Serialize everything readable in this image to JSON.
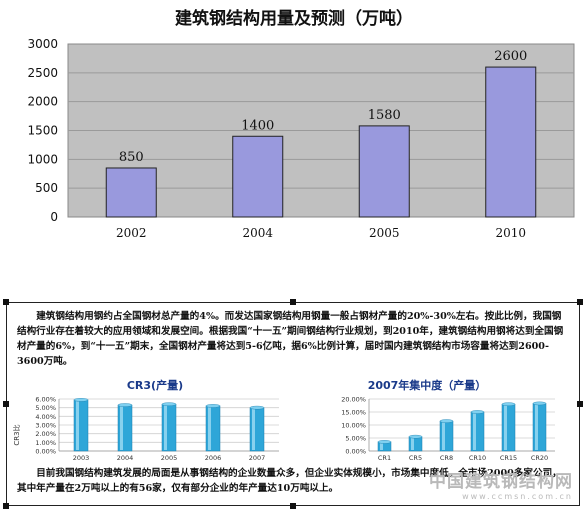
{
  "chart_data": [
    {
      "type": "bar",
      "title": "建筑钢结构用量及预测（万吨）",
      "categories": [
        "2002",
        "2004",
        "2005",
        "2010"
      ],
      "values": [
        850,
        1400,
        1580,
        2600
      ],
      "data_labels": [
        "850",
        "1400",
        "1580",
        "2600"
      ],
      "ylim": [
        0,
        3000
      ],
      "yticks": [
        "0",
        "500",
        "1000",
        "1500",
        "2000",
        "2500",
        "3000"
      ],
      "grid": true,
      "colors": {
        "bar": "#9999dd",
        "plot_bg": "#c0c0c0"
      }
    },
    {
      "type": "bar",
      "title": "CR3(产量)",
      "ylabel": "CR3比",
      "categories": [
        "2003",
        "2004",
        "2005",
        "2006",
        "2007"
      ],
      "values": [
        5.9,
        5.3,
        5.4,
        5.2,
        5.0
      ],
      "ylim": [
        0,
        6
      ],
      "yticks": [
        "0.00%",
        "1.00%",
        "2.00%",
        "3.00%",
        "4.00%",
        "5.00%",
        "6.00%"
      ],
      "grid": true,
      "colors": {
        "bar": "#2ea6d8"
      }
    },
    {
      "type": "bar",
      "title": "2007年集中度（产量）",
      "categories": [
        "CR1",
        "CR5",
        "CR8",
        "CR10",
        "CR15",
        "CR20"
      ],
      "values": [
        3.5,
        5.5,
        11.5,
        15.0,
        18.0,
        18.3
      ],
      "ylim": [
        0,
        20
      ],
      "yticks": [
        "0.00%",
        "5.00%",
        "10.00%",
        "15.00%",
        "20.00%"
      ],
      "grid": true,
      "colors": {
        "bar": "#2ea6d8"
      }
    }
  ],
  "document": {
    "paragraph1": "建筑钢结构用钢约占全国钢材总产量的4%。而发达国家钢结构用钢量一般占钢材产量的20%-30%左右。按此比例，我国钢结构行业存在着较大的应用领域和发展空间。根据我国“十一五”期间钢结构行业规划，到2010年，建筑钢结构用钢将达到全国钢材产量的6%，到“十一五”期末，全国钢材产量将达到5-6亿吨，据6%比例计算，届时国内建筑钢结构市场容量将达到2600-3600万吨。",
    "paragraph2": "目前我国钢结构建筑发展的局面是从事钢结构的企业数量众多，但企业实体规模小，市场集中度低。全市场2000多家公司，其中年产量在2万吨以上的有56家，仅有部分企业的年产量达10万吨以上。"
  },
  "watermark": {
    "line1": "中国建筑钢结构网",
    "line2": "www.ccmsn.com.cn"
  }
}
